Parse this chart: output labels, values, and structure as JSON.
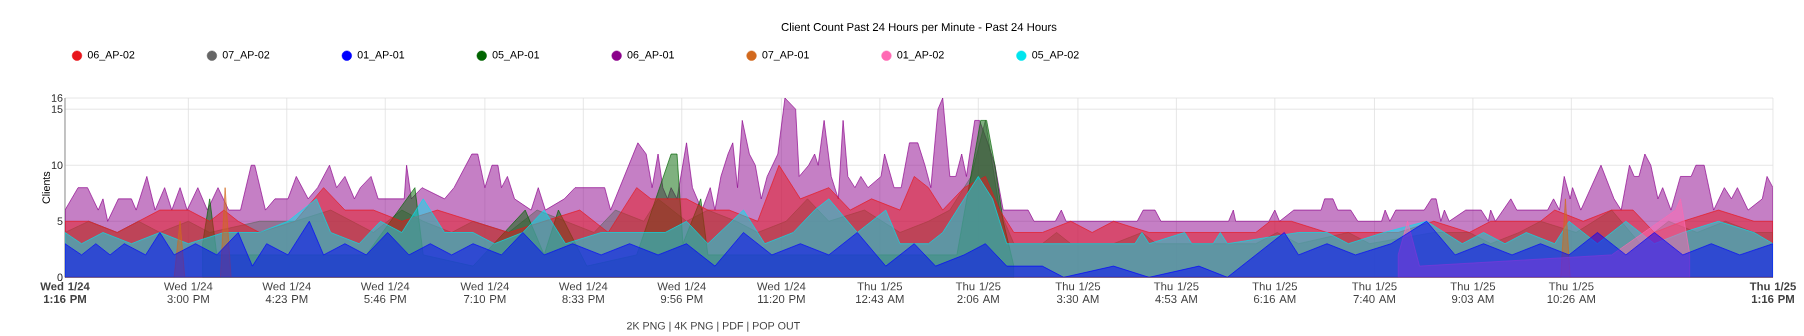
{
  "chart_data": {
    "type": "area",
    "title": "Client Count Past 24 Hours per Minute - Past 24 Hours",
    "ylabel": "Clients",
    "xlim": [
      "--01-24T13:16",
      "--01-25T13:16"
    ],
    "ylim": [
      0,
      16
    ],
    "xticks": [
      {
        "value": "--01-24T13:16",
        "label": "Wed 1/24 1:16 PM"
      },
      {
        "value": "--01-24T15:00",
        "label": "Wed 1/24 3:00 PM"
      },
      {
        "value": "--01-24T16:23",
        "label": "Wed 1/24 4:23 PM"
      },
      {
        "value": "--01-24T17:46",
        "label": "Wed 1/24 5:46 PM"
      },
      {
        "value": "--01-24T19:10",
        "label": "Wed 1/24 7:10 PM"
      },
      {
        "value": "--01-24T20:33",
        "label": "Wed 1/24 8:33 PM"
      },
      {
        "value": "--01-24T21:56",
        "label": "Wed 1/24 9:56 PM"
      },
      {
        "value": "--01-24T23:20",
        "label": "Wed 1/24 11:20 PM"
      },
      {
        "value": "--01-25T00:43",
        "label": "Thu 1/25 12:43 AM"
      },
      {
        "value": "--01-25T02:06",
        "label": "Thu 1/25 2:06 AM"
      },
      {
        "value": "--01-25T03:30",
        "label": "Thu 1/25 3:30 AM"
      },
      {
        "value": "--01-25T04:53",
        "label": "Thu 1/25 4:53 AM"
      },
      {
        "value": "--01-25T06:16",
        "label": "Thu 1/25 6:16 AM"
      },
      {
        "value": "--01-25T07:40",
        "label": "Thu 1/25 7:40 AM"
      },
      {
        "value": "--01-25T09:03",
        "label": "Thu 1/25 9:03 AM"
      },
      {
        "value": "--01-25T10:26",
        "label": "Thu 1/25 10:26 AM"
      },
      {
        "value": "--01-25T13:16",
        "label": "Thu 1/25 1:16 PM"
      }
    ],
    "yticks": [
      0,
      5,
      10,
      15,
      16
    ],
    "grid": true,
    "legend": "top",
    "annotations": [
      "2K PNG | 4K PNG | PDF | POP OUT"
    ],
    "series": [
      {
        "name": "06_AP-02",
        "color": "#e8161c",
        "x": [
          "--01-24T13:16",
          "--01-24T13:36",
          "--01-24T14:00",
          "--01-24T14:18",
          "--01-24T14:36",
          "--01-24T15:00",
          "--01-24T15:18",
          "--01-24T15:30",
          "--01-24T15:42",
          "--01-24T16:00",
          "--01-24T16:30",
          "--01-24T16:54",
          "--01-24T17:12",
          "--01-24T17:36",
          "--01-24T18:00",
          "--01-24T18:30",
          "--01-24T19:00",
          "--01-24T19:30",
          "--01-24T20:00",
          "--01-24T20:30",
          "--01-24T20:54",
          "--01-24T21:18",
          "--01-24T21:30",
          "--01-24T22:00",
          "--01-24T22:18",
          "--01-24T22:36",
          "--01-24T23:00",
          "--01-24T23:18",
          "--01-24T23:36",
          "--01-25T00:00",
          "--01-25T00:18",
          "--01-25T00:36",
          "--01-25T01:00",
          "--01-25T01:12",
          "--01-25T01:24",
          "--01-25T01:36",
          "--01-25T01:54",
          "--01-25T02:12",
          "--01-25T02:24",
          "--01-25T02:36",
          "--01-25T03:00",
          "--01-25T03:24",
          "--01-25T03:42",
          "--01-25T04:00",
          "--01-25T04:30",
          "--01-25T05:00",
          "--01-25T05:30",
          "--01-25T06:00",
          "--01-25T06:12",
          "--01-25T06:30",
          "--01-25T07:00",
          "--01-25T07:30",
          "--01-25T08:00",
          "--01-25T08:30",
          "--01-25T09:00",
          "--01-25T09:18",
          "--01-25T09:36",
          "--01-25T10:00",
          "--01-25T10:12",
          "--01-25T10:36",
          "--01-25T11:00",
          "--01-25T11:18",
          "--01-25T11:36",
          "--01-25T12:00",
          "--01-25T12:30",
          "--01-25T13:00",
          "--01-25T13:16"
        ],
        "values": [
          5,
          5,
          4,
          5,
          6,
          6,
          5,
          6,
          5,
          4,
          5,
          8,
          6,
          6,
          5,
          6,
          5,
          4,
          5,
          6,
          4,
          8,
          7,
          7,
          6,
          6,
          5,
          10,
          7,
          8,
          6,
          7,
          6,
          9,
          8,
          6,
          8,
          9,
          6,
          4,
          4,
          5,
          4,
          5,
          4,
          4,
          4,
          4,
          5,
          5,
          4,
          4,
          4,
          5,
          4,
          5,
          5,
          5,
          6,
          5,
          6,
          6,
          4,
          5,
          6,
          5,
          5
        ]
      },
      {
        "name": "07_AP-02",
        "color": "#666666",
        "x": [
          "--01-24T13:16",
          "--01-24T13:36",
          "--01-24T14:00",
          "--01-24T14:18",
          "--01-24T14:36",
          "--01-24T15:00",
          "--01-24T15:18",
          "--01-24T16:00",
          "--01-24T16:30",
          "--01-24T17:00",
          "--01-24T17:18",
          "--01-24T17:36",
          "--01-24T18:00",
          "--01-24T18:18",
          "--01-24T18:42",
          "--01-24T19:00",
          "--01-24T19:30",
          "--01-24T19:54",
          "--01-24T20:18",
          "--01-24T20:42",
          "--01-24T21:00",
          "--01-24T21:24",
          "--01-24T21:36",
          "--01-24T22:00",
          "--01-24T22:18",
          "--01-24T22:42",
          "--01-24T23:00",
          "--01-24T23:24",
          "--01-24T23:42",
          "--01-25T00:00",
          "--01-25T00:30",
          "--01-25T01:00",
          "--01-25T01:24",
          "--01-25T01:42",
          "--01-25T02:00",
          "--01-25T02:12",
          "--01-25T02:24",
          "--01-25T02:36",
          "--01-25T03:00",
          "--01-25T03:12",
          "--01-25T03:24",
          "--01-25T04:00",
          "--01-25T04:24",
          "--01-25T04:36",
          "--01-25T06:00",
          "--01-25T06:18",
          "--01-25T06:36",
          "--01-25T07:18",
          "--01-25T07:36",
          "--01-25T08:30",
          "--01-25T09:00",
          "--01-25T09:18",
          "--01-25T09:42",
          "--01-25T10:00",
          "--01-25T10:30",
          "--01-25T11:00",
          "--01-25T11:24",
          "--01-25T11:48",
          "--01-25T12:12",
          "--01-25T12:36",
          "--01-25T13:00",
          "--01-25T13:16"
        ],
        "values": [
          4,
          5,
          4,
          5,
          4,
          5,
          4,
          5,
          5,
          6,
          5,
          4,
          6,
          5,
          4,
          5,
          4,
          6,
          5,
          4,
          6,
          5,
          7,
          5,
          6,
          5,
          4,
          5,
          7,
          5,
          6,
          4,
          5,
          6,
          9,
          14,
          6,
          3,
          3,
          4,
          3,
          3,
          4,
          3,
          3,
          4,
          3,
          4,
          3,
          4,
          4,
          3,
          4,
          5,
          4,
          6,
          3,
          5,
          4,
          5,
          4,
          4
        ]
      },
      {
        "name": "01_AP-01",
        "color": "#0000ff",
        "x": [
          "--01-24T13:16",
          "--01-24T13:30",
          "--01-24T13:42",
          "--01-24T13:54",
          "--01-24T14:06",
          "--01-24T14:24",
          "--01-24T14:36",
          "--01-24T14:48",
          "--01-24T15:06",
          "--01-24T15:24",
          "--01-24T15:42",
          "--01-24T15:54",
          "--01-24T16:06",
          "--01-24T16:24",
          "--01-24T16:42",
          "--01-24T16:54",
          "--01-24T17:12",
          "--01-24T17:30",
          "--01-24T17:48",
          "--01-24T18:06",
          "--01-24T18:24",
          "--01-24T18:42",
          "--01-24T19:00",
          "--01-24T19:24",
          "--01-24T19:42",
          "--01-24T20:00",
          "--01-24T20:24",
          "--01-24T20:48",
          "--01-24T21:12",
          "--01-24T21:36",
          "--01-24T22:00",
          "--01-24T22:24",
          "--01-24T22:48",
          "--01-24T23:12",
          "--01-24T23:36",
          "--01-25T00:00",
          "--01-25T00:24",
          "--01-25T00:48",
          "--01-25T01:12",
          "--01-25T01:30",
          "--01-25T01:54",
          "--01-25T02:12",
          "--01-25T02:30",
          "--01-25T03:00",
          "--01-25T03:18",
          "--01-25T04:00",
          "--01-25T04:30",
          "--01-25T05:12",
          "--01-25T05:36",
          "--01-25T06:24",
          "--01-25T06:36",
          "--01-25T07:00",
          "--01-25T07:24",
          "--01-25T07:54",
          "--01-25T08:24",
          "--01-25T08:48",
          "--01-25T09:12",
          "--01-25T09:36",
          "--01-25T10:00",
          "--01-25T10:24",
          "--01-25T10:48",
          "--01-25T11:12",
          "--01-25T11:36",
          "--01-25T12:00",
          "--01-25T12:24",
          "--01-25T12:48",
          "--01-25T13:16"
        ],
        "values": [
          3,
          2,
          3,
          2,
          3,
          2,
          4,
          2,
          3,
          2,
          4,
          1,
          3,
          2,
          5,
          2,
          3,
          2,
          4,
          2,
          3,
          2,
          3,
          2,
          4,
          2,
          3,
          2,
          3,
          2,
          3,
          1,
          4,
          2,
          3,
          2,
          4,
          1,
          3,
          1,
          2,
          3,
          1,
          1,
          0,
          1,
          0,
          1,
          0,
          4,
          2,
          3,
          2,
          3,
          5,
          2,
          3,
          2,
          3,
          2,
          4,
          2,
          4,
          2,
          3,
          2,
          3
        ]
      },
      {
        "name": "05_AP-01",
        "color": "#006400",
        "x": [
          "--01-24T15:12",
          "--01-24T15:18",
          "--01-24T15:24",
          "--01-24T17:30",
          "--01-24T18:11",
          "--01-24T18:18",
          "--01-24T19:00",
          "--01-24T19:44",
          "--01-24T20:00",
          "--01-24T20:12",
          "--01-24T20:36",
          "--01-24T21:18",
          "--01-24T21:47",
          "--01-24T21:52",
          "--01-24T21:57",
          "--01-24T22:12",
          "--01-24T22:18",
          "--01-25T01:48",
          "--01-25T02:08",
          "--01-25T02:13",
          "--01-25T02:20",
          "--01-25T02:27",
          "--01-25T02:36"
        ],
        "values": [
          3,
          7,
          2,
          2,
          8,
          2,
          1,
          6,
          2,
          6,
          1,
          2,
          11,
          11,
          3,
          7,
          2,
          2,
          14,
          14,
          10,
          5,
          1
        ]
      },
      {
        "name": "06_AP-01",
        "color": "#8b008b",
        "x": [
          "--01-24T13:16",
          "--01-24T13:27",
          "--01-24T13:35",
          "--01-24T13:44",
          "--01-24T13:48",
          "--01-24T13:52",
          "--01-24T14:01",
          "--01-24T14:12",
          "--01-24T14:16",
          "--01-24T14:25",
          "--01-24T14:32",
          "--01-24T14:40",
          "--01-24T14:46",
          "--01-24T14:53",
          "--01-24T14:59",
          "--01-24T15:08",
          "--01-24T15:16",
          "--01-24T15:25",
          "--01-24T15:34",
          "--01-24T15:44",
          "--01-24T15:53",
          "--01-24T15:56",
          "--01-24T16:05",
          "--01-24T16:13",
          "--01-24T16:24",
          "--01-24T16:31",
          "--01-24T16:41",
          "--01-24T16:49",
          "--01-24T16:59",
          "--01-24T17:05",
          "--01-24T17:12",
          "--01-24T17:20",
          "--01-24T17:25",
          "--01-24T17:34",
          "--01-24T17:40",
          "--01-24T18:02",
          "--01-24T18:04",
          "--01-24T18:08",
          "--01-24T18:17",
          "--01-24T18:36",
          "--01-24T18:44",
          "--01-24T18:59",
          "--01-24T19:04",
          "--01-24T19:10",
          "--01-24T19:16",
          "--01-24T19:21",
          "--01-24T19:24",
          "--01-24T19:29",
          "--01-24T19:35",
          "--01-24T19:49",
          "--01-24T19:55",
          "--01-24T20:01",
          "--01-24T20:17",
          "--01-24T20:26",
          "--01-24T20:51",
          "--01-24T20:56",
          "--01-24T21:19",
          "--01-24T21:26",
          "--01-24T21:31",
          "--01-24T21:36",
          "--01-24T21:40",
          "--01-24T21:44",
          "--01-24T21:47",
          "--01-24T21:52",
          "--01-24T22:00",
          "--01-24T22:05",
          "--01-24T22:13",
          "--01-24T22:20",
          "--01-24T22:24",
          "--01-24T22:29",
          "--01-24T22:35",
          "--01-24T22:39",
          "--01-24T22:43",
          "--01-24T22:47",
          "--01-24T22:53",
          "--01-24T22:58",
          "--01-24T23:03",
          "--01-24T23:08",
          "--01-24T23:17",
          "--01-24T23:23",
          "--01-24T23:32",
          "--01-24T23:35",
          "--01-24T23:43",
          "--01-24T23:48",
          "--01-24T23:51",
          "--01-24T23:56",
          "--01-25T00:02",
          "--01-25T00:08",
          "--01-25T00:12",
          "--01-25T00:16",
          "--01-25T00:22",
          "--01-25T00:27",
          "--01-25T00:33",
          "--01-25T00:44",
          "--01-25T00:47",
          "--01-25T00:55",
          "--01-25T01:01",
          "--01-25T01:08",
          "--01-25T01:15",
          "--01-25T01:21",
          "--01-25T01:26",
          "--01-25T01:32",
          "--01-25T01:36",
          "--01-25T01:42",
          "--01-25T01:47",
          "--01-25T01:52",
          "--01-25T01:56",
          "--01-25T02:03",
          "--01-25T02:07",
          "--01-25T02:14",
          "--01-25T02:20",
          "--01-25T02:27",
          "--01-25T02:37",
          "--01-25T02:48",
          "--01-25T02:53",
          "--01-25T03:11",
          "--01-25T03:16",
          "--01-25T03:20",
          "--01-25T04:20",
          "--01-25T04:25",
          "--01-25T04:35",
          "--01-25T04:40",
          "--01-25T05:37",
          "--01-25T05:41",
          "--01-25T05:43",
          "--01-25T06:11",
          "--01-25T06:16",
          "--01-25T06:20",
          "--01-25T06:32",
          "--01-25T06:55",
          "--01-25T06:58",
          "--01-25T07:05",
          "--01-25T07:09",
          "--01-25T07:20",
          "--01-25T07:26",
          "--01-25T07:46",
          "--01-25T07:49",
          "--01-25T07:53",
          "--01-25T07:58",
          "--01-25T08:22",
          "--01-25T08:28",
          "--01-25T08:32",
          "--01-25T08:36",
          "--01-25T08:39",
          "--01-25T08:43",
          "--01-25T08:57",
          "--01-25T09:10",
          "--01-25T09:16",
          "--01-25T09:18",
          "--01-25T09:22",
          "--01-25T09:35",
          "--01-25T09:40",
          "--01-25T10:06",
          "--01-25T10:11",
          "--01-25T10:16",
          "--01-25T10:20",
          "--01-25T10:25",
          "--01-25T10:27",
          "--01-25T10:34",
          "--01-25T10:51",
          "--01-25T11:02",
          "--01-25T11:08",
          "--01-25T11:15",
          "--01-25T11:19",
          "--01-25T11:23",
          "--01-25T11:28",
          "--01-25T11:33",
          "--01-25T11:39",
          "--01-25T11:43",
          "--01-25T11:50",
          "--01-25T11:58",
          "--01-25T12:07",
          "--01-25T12:11",
          "--01-25T12:18",
          "--01-25T12:26",
          "--01-25T12:35",
          "--01-25T12:41",
          "--01-25T12:46",
          "--01-25T12:55",
          "--01-25T13:07",
          "--01-25T13:11",
          "--01-25T13:16"
        ],
        "values": [
          6,
          8,
          8,
          6,
          7,
          5,
          7,
          7,
          6,
          9,
          6,
          8,
          6,
          8,
          6,
          8,
          6,
          8,
          6,
          6,
          10,
          10,
          6,
          7,
          7,
          9,
          7,
          8,
          10,
          8,
          9,
          7,
          8,
          9,
          7,
          7,
          10,
          7,
          8,
          7,
          8,
          11,
          11,
          8,
          10,
          10,
          8,
          9,
          7,
          6,
          8,
          6,
          7,
          8,
          8,
          6,
          12,
          11,
          8,
          11,
          8,
          7,
          8,
          7,
          12,
          8,
          6,
          8,
          6,
          9,
          11,
          12,
          8,
          14,
          11,
          10,
          7,
          9,
          11,
          16,
          15,
          9,
          10,
          11,
          10,
          14,
          9,
          7,
          14,
          9,
          8,
          9,
          8,
          9,
          11,
          8,
          8,
          12,
          12,
          10,
          8,
          15,
          16,
          9,
          9,
          11,
          9,
          14,
          14,
          12,
          10,
          6,
          6,
          6,
          5,
          5,
          6,
          5,
          5,
          6,
          6,
          5,
          5,
          6,
          5,
          5,
          6,
          5,
          6,
          6,
          7,
          7,
          6,
          6,
          5,
          5,
          6,
          5,
          6,
          6,
          7,
          7,
          5,
          6,
          5,
          6,
          6,
          5,
          6,
          5,
          7,
          6,
          6,
          7,
          6,
          9,
          7,
          8,
          6,
          10,
          7,
          6,
          10,
          9,
          9,
          11,
          10,
          7,
          8,
          6,
          9,
          9,
          10,
          10,
          6,
          8,
          7,
          8,
          6,
          7,
          9,
          8
        ]
      },
      {
        "name": "07_AP-01",
        "color": "#d2691e",
        "x": [
          "--01-24T13:16",
          "--01-24T14:48",
          "--01-24T14:53",
          "--01-24T14:57",
          "--01-24T15:27",
          "--01-24T15:31",
          "--01-24T15:36",
          "--01-24T20:00",
          "--01-25T10:17",
          "--01-25T10:21",
          "--01-25T10:25",
          "--01-25T13:16"
        ],
        "values": [
          0,
          0,
          5,
          0,
          0,
          8,
          0,
          0,
          0,
          7,
          0,
          0
        ]
      },
      {
        "name": "01_AP-02",
        "color": "#ff69b4",
        "x": [
          "--01-25T08:00",
          "--01-25T08:08",
          "--01-25T08:18",
          "--01-25T11:00",
          "--01-25T11:54",
          "--01-25T11:58",
          "--01-25T12:06"
        ],
        "values": [
          2,
          5,
          1,
          2,
          6,
          7,
          2
        ]
      },
      {
        "name": "05_AP-02",
        "color": "#00e5ee",
        "x": [
          "--01-24T13:16",
          "--01-24T13:30",
          "--01-24T13:48",
          "--01-24T14:12",
          "--01-24T14:36",
          "--01-24T15:00",
          "--01-24T15:30",
          "--01-24T16:00",
          "--01-24T16:24",
          "--01-24T16:48",
          "--01-24T17:00",
          "--01-24T17:24",
          "--01-24T17:42",
          "--01-24T18:00",
          "--01-24T18:18",
          "--01-24T18:36",
          "--01-24T19:00",
          "--01-24T19:18",
          "--01-24T19:42",
          "--01-24T20:00",
          "--01-24T20:18",
          "--01-24T20:48",
          "--01-24T21:18",
          "--01-24T21:42",
          "--01-24T22:00",
          "--01-24T22:18",
          "--01-24T22:48",
          "--01-24T23:06",
          "--01-24T23:30",
          "--01-24T23:48",
          "--01-25T00:00",
          "--01-25T00:24",
          "--01-25T00:48",
          "--01-25T01:00",
          "--01-25T01:24",
          "--01-25T01:36",
          "--01-25T01:54",
          "--01-25T02:06",
          "--01-25T02:18",
          "--01-25T02:30",
          "--01-25T03:00",
          "--01-25T04:18",
          "--01-25T04:24",
          "--01-25T04:30",
          "--01-25T05:00",
          "--01-25T05:06",
          "--01-25T05:24",
          "--01-25T05:30",
          "--01-25T05:36",
          "--01-25T06:36",
          "--01-25T07:00",
          "--01-25T07:18",
          "--01-25T07:48",
          "--01-25T08:24",
          "--01-25T08:54",
          "--01-25T09:12",
          "--01-25T09:30",
          "--01-25T09:48",
          "--01-25T10:12",
          "--01-25T10:24",
          "--01-25T10:48",
          "--01-25T11:12",
          "--01-25T11:36",
          "--01-25T12:00",
          "--01-25T12:30",
          "--01-25T13:00",
          "--01-25T13:16"
        ],
        "values": [
          4,
          3,
          4,
          3,
          4,
          3,
          4,
          4,
          5,
          7,
          4,
          3,
          5,
          4,
          7,
          4,
          4,
          3,
          4,
          6,
          3,
          4,
          4,
          4,
          5,
          3,
          6,
          3,
          4,
          6,
          7,
          4,
          6,
          3,
          3,
          4,
          7,
          9,
          7,
          3,
          3,
          3,
          4,
          3,
          4,
          3,
          3,
          4,
          3,
          4,
          4,
          3,
          4,
          5,
          3,
          4,
          3,
          4,
          3,
          5,
          3,
          5,
          3,
          4,
          5,
          4,
          3
        ]
      }
    ]
  }
}
